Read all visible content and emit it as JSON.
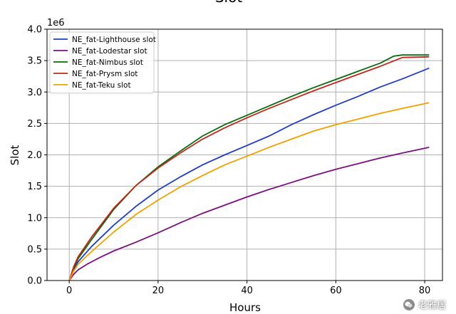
{
  "chart_data": {
    "type": "line",
    "title": "Slot",
    "xlabel": "Hours",
    "ylabel": "Slot",
    "y_offset_label": "1e6",
    "xlim": [
      -5,
      84
    ],
    "ylim": [
      0,
      4000000
    ],
    "x_ticks": [
      0,
      20,
      40,
      60,
      80
    ],
    "x_tick_labels": [
      "0",
      "20",
      "40",
      "60",
      "80"
    ],
    "y_ticks": [
      0,
      500000,
      1000000,
      1500000,
      2000000,
      2500000,
      3000000,
      3500000,
      4000000
    ],
    "y_tick_labels": [
      "0.0",
      "0.5",
      "1.0",
      "1.5",
      "2.0",
      "2.5",
      "3.0",
      "3.5",
      "4.0"
    ],
    "grid": true,
    "legend_position": "top-left",
    "series": [
      {
        "name": "NE_fat-Lighthouse slot",
        "color": "#1f3fbf",
        "points": [
          [
            0,
            0
          ],
          [
            1,
            180000
          ],
          [
            2,
            300000
          ],
          [
            5,
            540000
          ],
          [
            10,
            880000
          ],
          [
            15,
            1180000
          ],
          [
            20,
            1440000
          ],
          [
            25,
            1650000
          ],
          [
            30,
            1840000
          ],
          [
            35,
            2000000
          ],
          [
            40,
            2150000
          ],
          [
            45,
            2300000
          ],
          [
            50,
            2480000
          ],
          [
            55,
            2640000
          ],
          [
            60,
            2790000
          ],
          [
            65,
            2930000
          ],
          [
            70,
            3080000
          ],
          [
            75,
            3210000
          ],
          [
            81,
            3380000
          ]
        ]
      },
      {
        "name": "NE_fat-Lodestar slot",
        "color": "#7b1080",
        "points": [
          [
            0,
            0
          ],
          [
            1,
            100000
          ],
          [
            2,
            170000
          ],
          [
            4,
            260000
          ],
          [
            7,
            370000
          ],
          [
            10,
            470000
          ],
          [
            15,
            610000
          ],
          [
            20,
            760000
          ],
          [
            25,
            920000
          ],
          [
            30,
            1070000
          ],
          [
            35,
            1200000
          ],
          [
            40,
            1330000
          ],
          [
            45,
            1450000
          ],
          [
            50,
            1560000
          ],
          [
            55,
            1670000
          ],
          [
            60,
            1770000
          ],
          [
            65,
            1860000
          ],
          [
            70,
            1950000
          ],
          [
            75,
            2030000
          ],
          [
            81,
            2120000
          ]
        ]
      },
      {
        "name": "NE_fat-Nimbus slot",
        "color": "#0a6b0a",
        "points": [
          [
            0,
            0
          ],
          [
            1,
            200000
          ],
          [
            2,
            350000
          ],
          [
            5,
            650000
          ],
          [
            10,
            1130000
          ],
          [
            15,
            1510000
          ],
          [
            20,
            1810000
          ],
          [
            25,
            2060000
          ],
          [
            30,
            2300000
          ],
          [
            35,
            2480000
          ],
          [
            40,
            2630000
          ],
          [
            45,
            2780000
          ],
          [
            50,
            2930000
          ],
          [
            55,
            3070000
          ],
          [
            60,
            3200000
          ],
          [
            65,
            3330000
          ],
          [
            70,
            3460000
          ],
          [
            73,
            3570000
          ],
          [
            75,
            3590000
          ],
          [
            81,
            3590000
          ]
        ]
      },
      {
        "name": "NE_fat-Prysm slot",
        "color": "#c0281e",
        "points": [
          [
            0,
            0
          ],
          [
            1,
            220000
          ],
          [
            2,
            380000
          ],
          [
            5,
            690000
          ],
          [
            10,
            1150000
          ],
          [
            15,
            1510000
          ],
          [
            20,
            1790000
          ],
          [
            25,
            2030000
          ],
          [
            30,
            2250000
          ],
          [
            35,
            2430000
          ],
          [
            40,
            2590000
          ],
          [
            45,
            2740000
          ],
          [
            50,
            2880000
          ],
          [
            55,
            3020000
          ],
          [
            60,
            3150000
          ],
          [
            65,
            3280000
          ],
          [
            70,
            3410000
          ],
          [
            75,
            3550000
          ],
          [
            81,
            3560000
          ]
        ]
      },
      {
        "name": "NE_fat-Teku slot",
        "color": "#f0a000",
        "points": [
          [
            0,
            0
          ],
          [
            1,
            150000
          ],
          [
            2,
            260000
          ],
          [
            5,
            460000
          ],
          [
            10,
            770000
          ],
          [
            15,
            1050000
          ],
          [
            20,
            1280000
          ],
          [
            25,
            1490000
          ],
          [
            30,
            1670000
          ],
          [
            35,
            1840000
          ],
          [
            40,
            1980000
          ],
          [
            45,
            2120000
          ],
          [
            50,
            2250000
          ],
          [
            55,
            2380000
          ],
          [
            60,
            2480000
          ],
          [
            65,
            2570000
          ],
          [
            70,
            2660000
          ],
          [
            75,
            2740000
          ],
          [
            81,
            2830000
          ]
        ]
      }
    ]
  },
  "watermark": {
    "text": "老雅居"
  }
}
